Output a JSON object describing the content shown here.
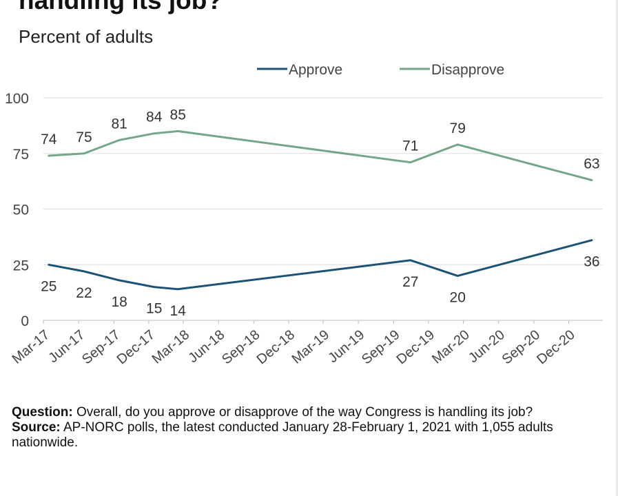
{
  "header": {
    "title": "handling its job?",
    "subtitle": "Percent of adults"
  },
  "colors": {
    "approve": "#1b5376",
    "disapprove": "#74a68a",
    "grid": "#dddddd",
    "text": "#444444"
  },
  "chart_data": {
    "type": "line",
    "ylim": [
      0,
      100
    ],
    "yticks": [
      0,
      25,
      50,
      75,
      100
    ],
    "xlim": [
      "2017-03-01",
      "2021-02-28"
    ],
    "xticks": [
      "Mar-17",
      "Jun-17",
      "Sep-17",
      "Dec-17",
      "Mar-18",
      "Jun-18",
      "Sep-18",
      "Dec-18",
      "Mar-19",
      "Jun-19",
      "Sep-19",
      "Dec-19",
      "Mar-20",
      "Jun-20",
      "Sep-20",
      "Dec-20"
    ],
    "legend_position": "top-right",
    "grid": true,
    "series": [
      {
        "name": "Approve",
        "x": [
          "2017-03-15",
          "2017-06-15",
          "2017-09-15",
          "2017-12-15",
          "2018-02-15",
          "2019-10-15",
          "2020-02-15",
          "2021-01-30"
        ],
        "values": [
          25,
          22,
          18,
          15,
          14,
          27,
          20,
          36
        ],
        "labels": [
          "25",
          "22",
          "18",
          "15",
          "14",
          "27",
          "20",
          "36"
        ]
      },
      {
        "name": "Disapprove",
        "x": [
          "2017-03-15",
          "2017-06-15",
          "2017-09-15",
          "2017-12-15",
          "2018-02-15",
          "2019-10-15",
          "2020-02-15",
          "2021-01-30"
        ],
        "values": [
          74,
          75,
          81,
          84,
          85,
          71,
          79,
          63
        ],
        "labels": [
          "74",
          "75",
          "81",
          "84",
          "85",
          "71",
          "79",
          "63"
        ]
      }
    ]
  },
  "notes": {
    "question_label": "Question:",
    "question_text": " Overall, do you approve or disapprove of the way Congress is handling its job?",
    "source_label": "Source:",
    "source_text": " AP-NORC polls, the latest conducted January 28-February 1, 2021 with 1,055 adults nationwide."
  }
}
